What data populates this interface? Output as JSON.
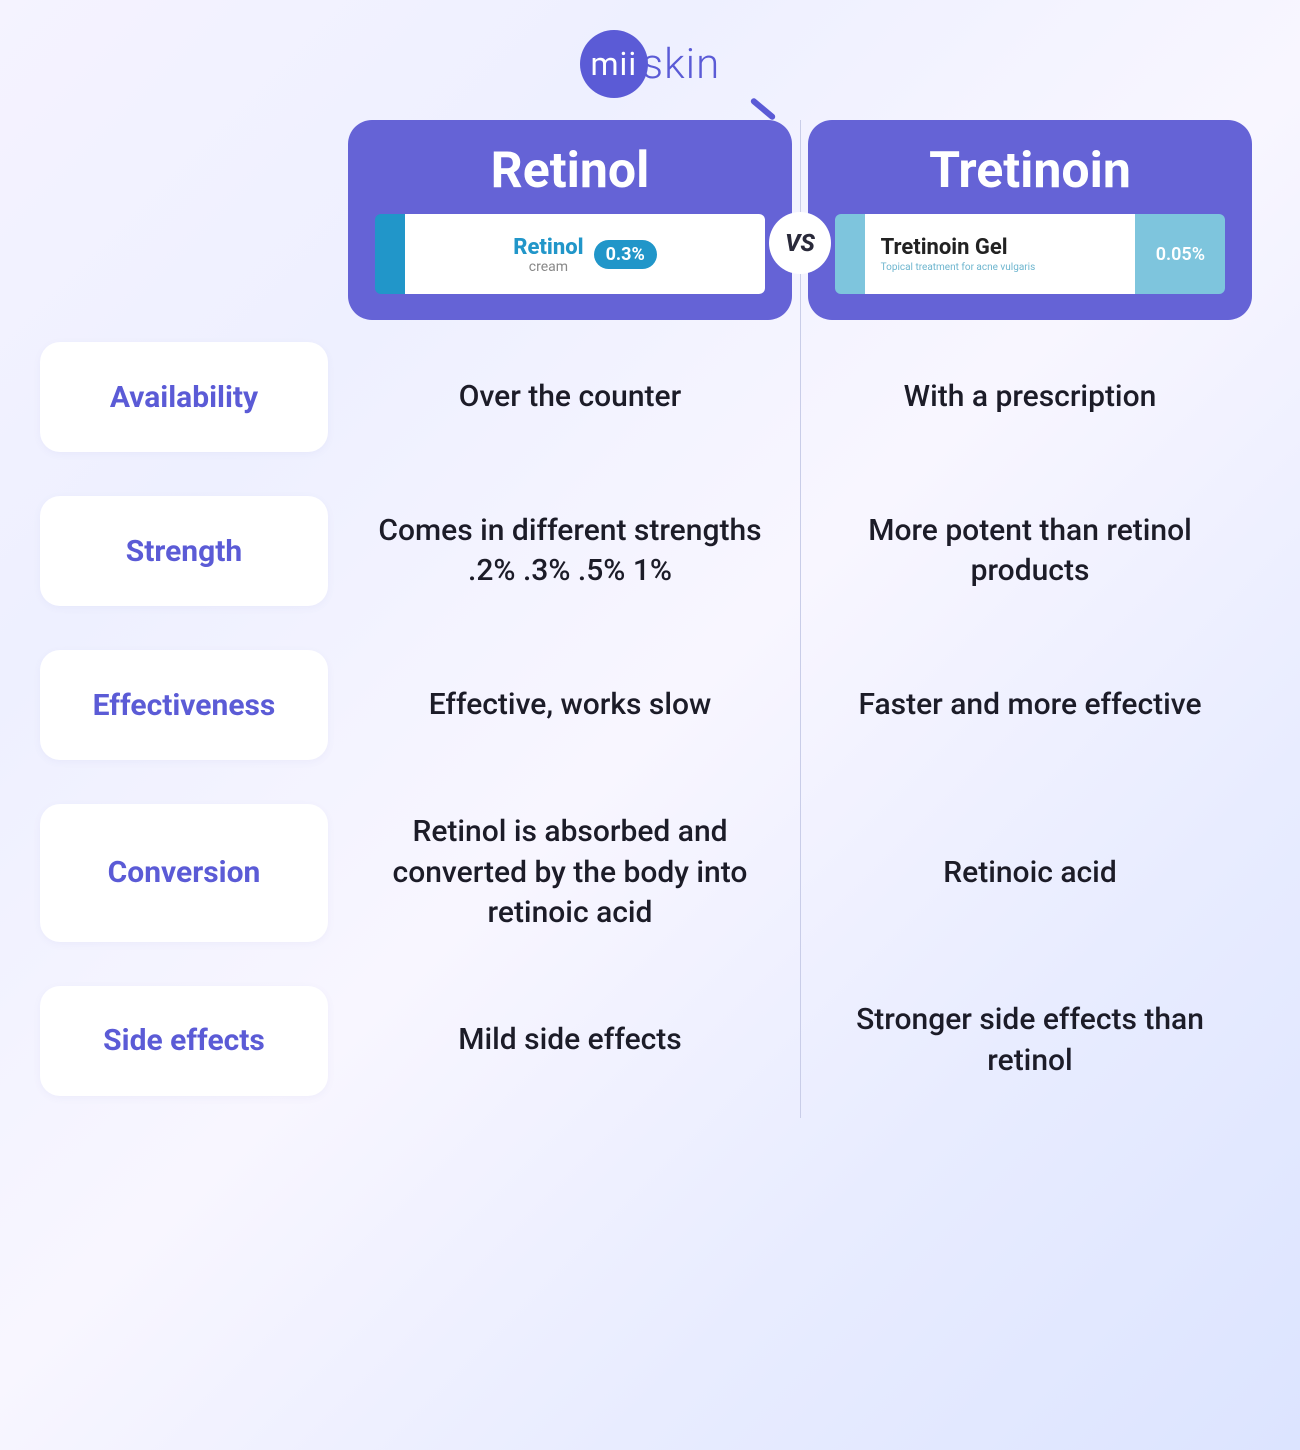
{
  "logo": {
    "inner": "mii",
    "outer": "skin"
  },
  "colors": {
    "header_bg": "#6563d6",
    "accent": "#5b5bd6",
    "text": "#1c1c28",
    "divider": "#c9cde8",
    "tube_blue": "#2196c9",
    "tube_light": "#7ec5dd"
  },
  "vs_label": "VS",
  "columns": {
    "left": {
      "title": "Retinol",
      "tube": {
        "label_main": "Retinol",
        "label_sub": "cream",
        "badge": "0.3%",
        "badge_bg": "#2196c9",
        "cap_color": "#2196c9",
        "label_color": "#2196c9"
      }
    },
    "right": {
      "title": "Tretinoin",
      "tube": {
        "label_main": "Tretinoin Gel",
        "label_sub": "Topical treatment for acne vulgaris",
        "badge": "0.05%",
        "cap_color": "#7ec5dd",
        "right_bg": "#7ec5dd"
      }
    }
  },
  "rows": [
    {
      "label": "Availability",
      "left": "Over the counter",
      "right": "With a prescription"
    },
    {
      "label": "Strength",
      "left": "Comes in different strengths .2% .3% .5% 1%",
      "right": "More potent than retinol products"
    },
    {
      "label": "Effectiveness",
      "left": "Effective, works slow",
      "right": "Faster and more effective"
    },
    {
      "label": "Conversion",
      "left": "Retinol is absorbed and converted by the body into retinoic acid",
      "right": "Retinoic acid"
    },
    {
      "label": "Side effects",
      "left": "Mild side effects",
      "right": "Stronger side effects than retinol"
    }
  ],
  "typography": {
    "col_title_size": 50,
    "row_label_size": 30,
    "cell_size": 30
  }
}
